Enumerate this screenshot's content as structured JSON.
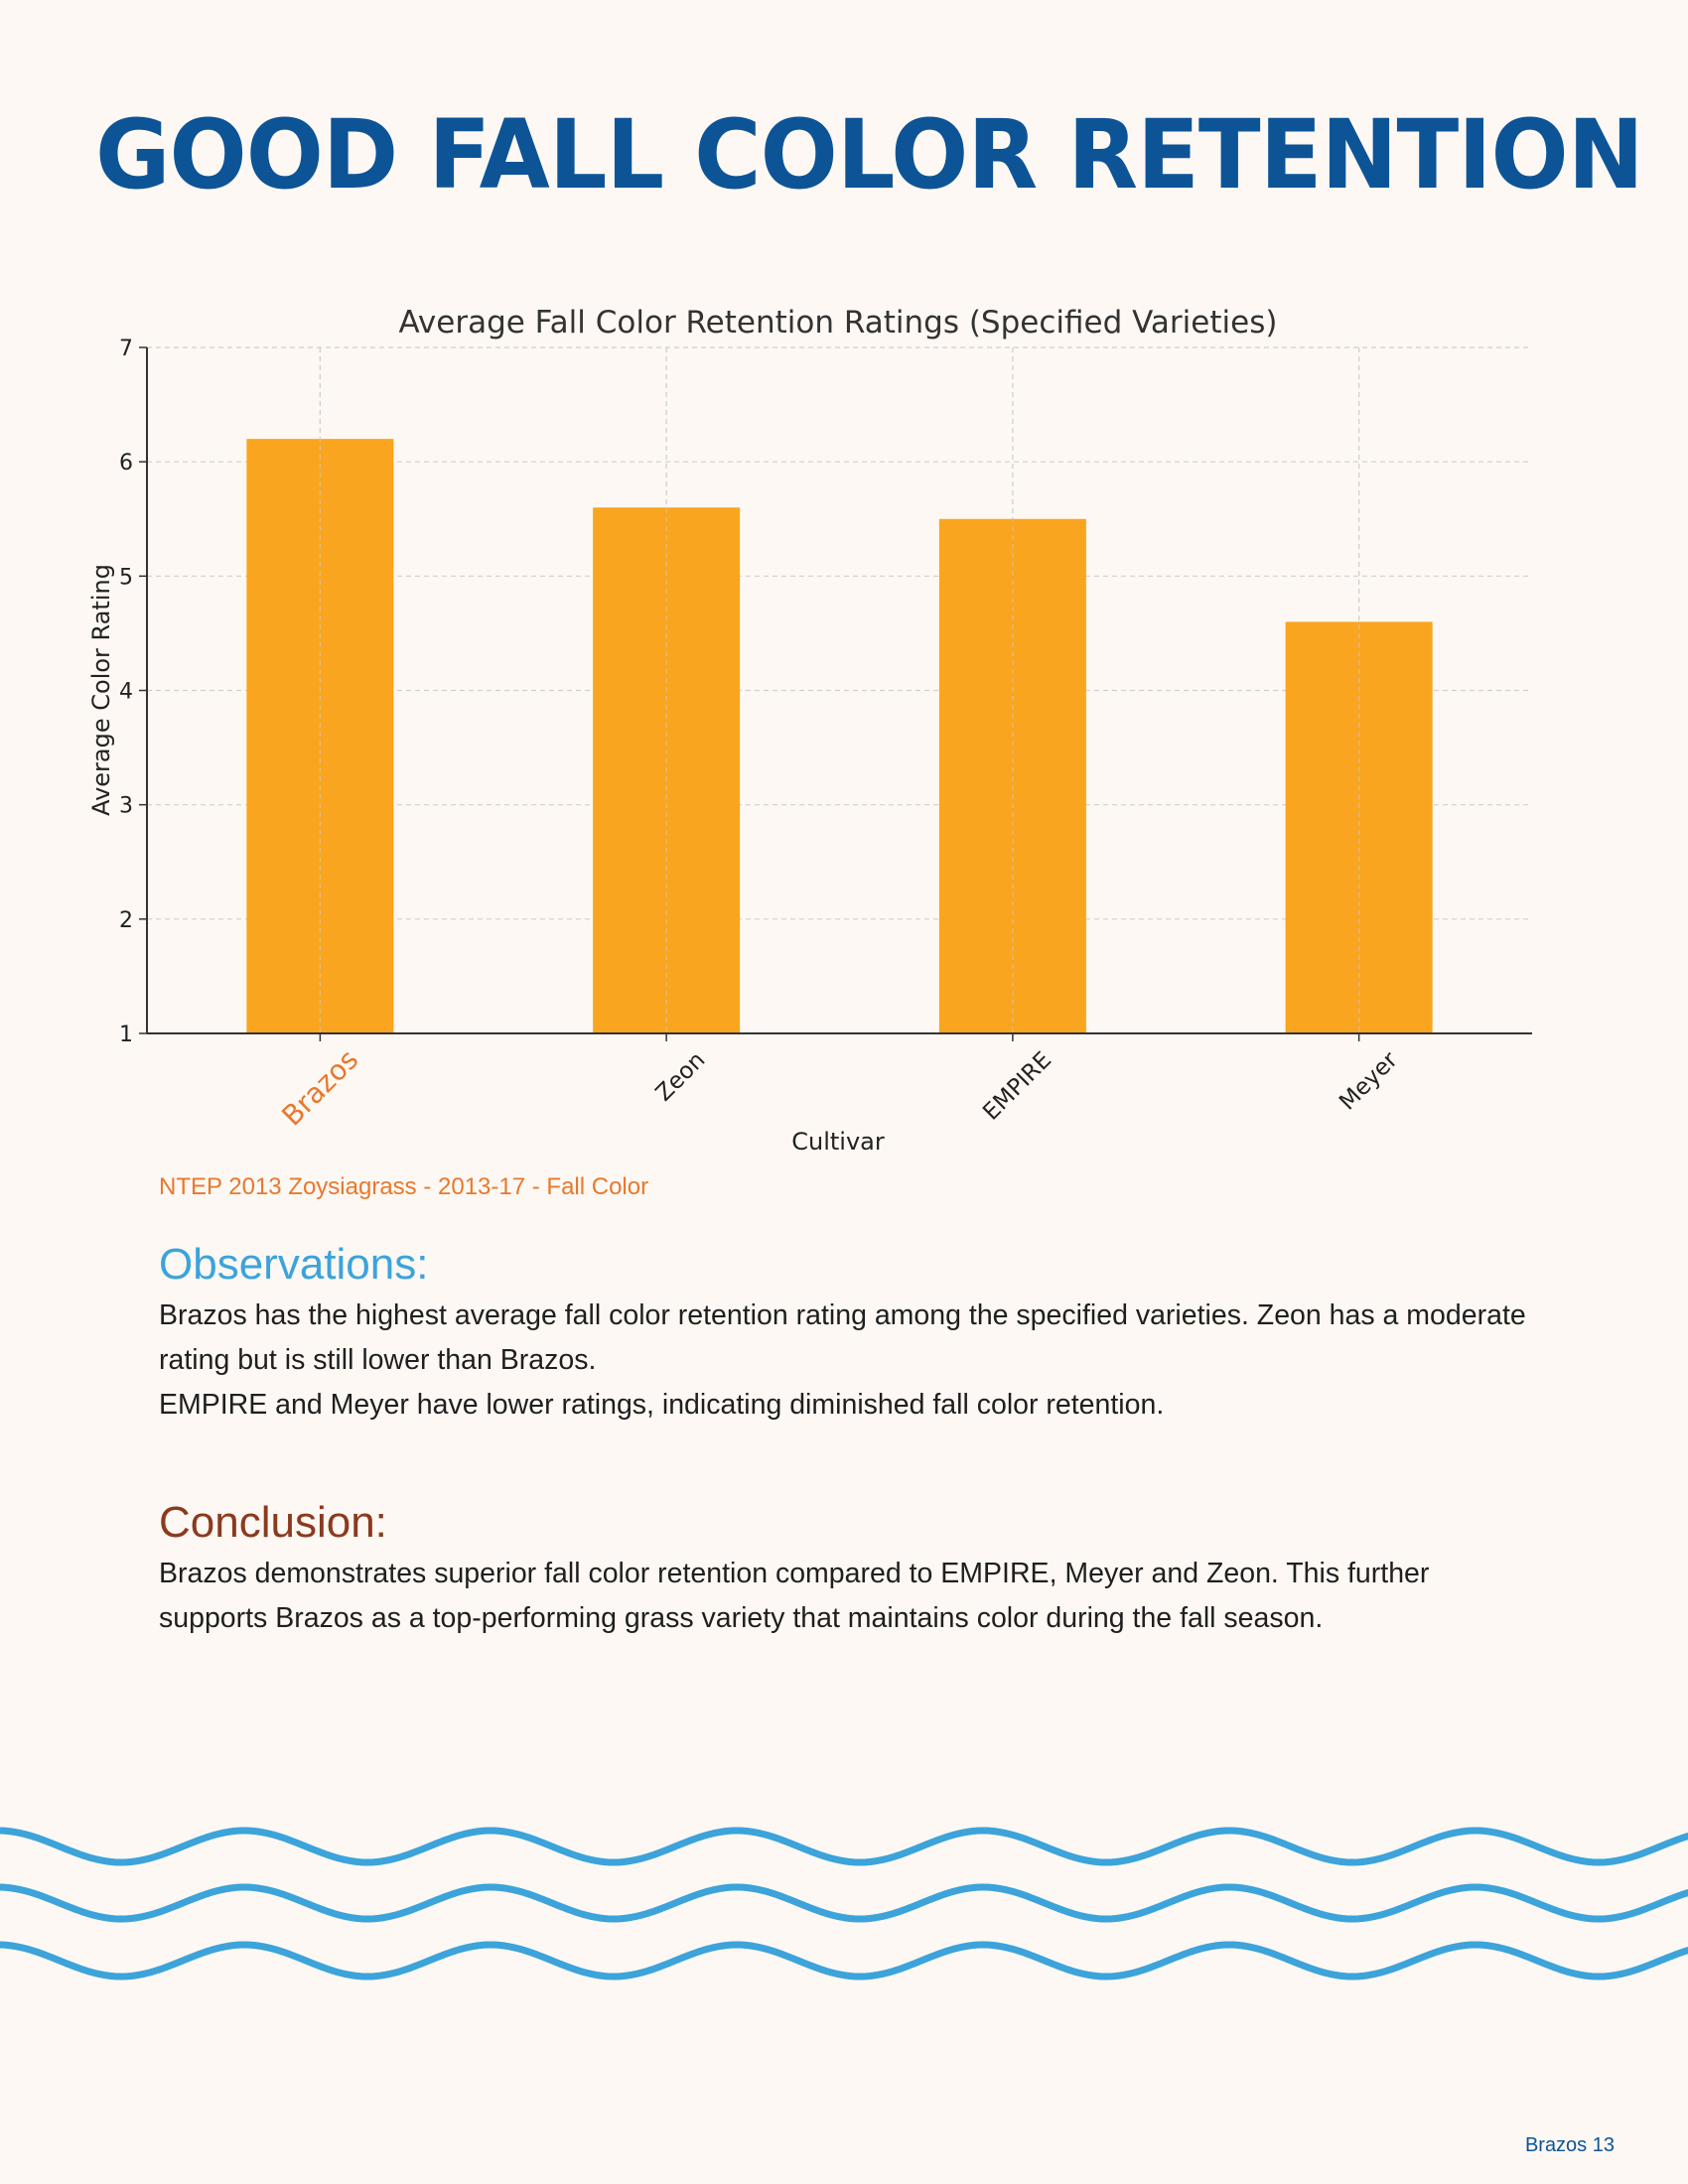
{
  "page": {
    "title": "GOOD FALL COLOR RETENTION",
    "page_number": "Brazos 13"
  },
  "colors": {
    "title": "#0d5497",
    "bar": "#f9a51f",
    "highlight": "#e8782d",
    "observations": "#3ca3db",
    "conclusion": "#8b3a1f",
    "waves": "#3ca3db"
  },
  "chart_data": {
    "type": "bar",
    "title": "Average Fall Color Retention Ratings (Specified Varieties)",
    "xlabel": "Cultivar",
    "ylabel": "Average Color Rating",
    "categories": [
      "Brazos",
      "Zeon",
      "EMPIRE",
      "Meyer"
    ],
    "values": [
      6.2,
      5.6,
      5.5,
      4.6
    ],
    "ylim": [
      1,
      7
    ],
    "yticks": [
      1,
      2,
      3,
      4,
      5,
      6,
      7
    ],
    "grid": true,
    "highlighted_category": "Brazos"
  },
  "source": "NTEP 2013 Zoysiagrass - 2013-17 - Fall Color",
  "observations": {
    "heading": "Observations:",
    "line1": "Brazos has the highest average fall color retention rating among the specified varieties. Zeon has a moderate rating but is still lower than Brazos.",
    "line2": "EMPIRE and Meyer have lower ratings, indicating diminished fall color retention."
  },
  "conclusion": {
    "heading": "Conclusion:",
    "text": "Brazos demonstrates superior fall color retention compared to EMPIRE, Meyer and Zeon. This further supports Brazos as a top-performing grass variety that maintains color during the fall season."
  }
}
